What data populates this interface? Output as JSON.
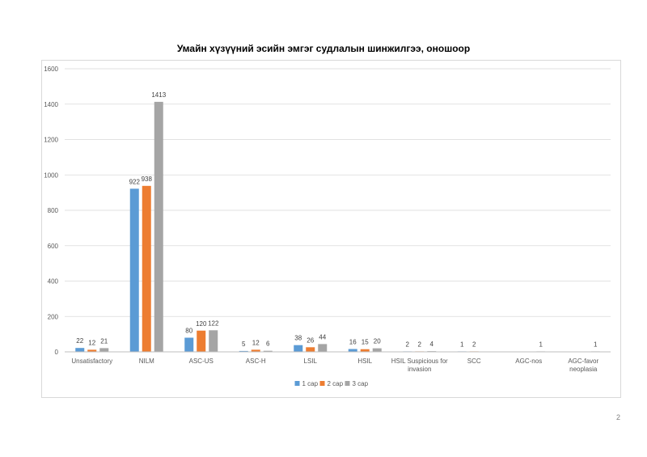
{
  "page": {
    "number": "2"
  },
  "chart_data": {
    "type": "bar",
    "title": "Умайн хүзүүний эсийн эмгэг судлалын шинжилгээ, оношоор",
    "xlabel": "",
    "ylabel": "",
    "ylim": [
      0,
      1600
    ],
    "yticks": [
      "0",
      "200",
      "400",
      "600",
      "800",
      "1000",
      "1200",
      "1400",
      "1600"
    ],
    "grid": true,
    "legend_position": "bottom",
    "categories": [
      [
        "Unsatisfactory"
      ],
      [
        "NILM"
      ],
      [
        "ASC-US"
      ],
      [
        "ASC-H"
      ],
      [
        "LSIL"
      ],
      [
        "HSIL"
      ],
      [
        "HSIL Suspicious for",
        "invasion"
      ],
      [
        "SCC"
      ],
      [
        "AGC-nos"
      ],
      [
        "AGC-favor",
        "neoplasia"
      ]
    ],
    "series": [
      {
        "name": "1 сар",
        "color": "#5b9bd5",
        "values": [
          22,
          922,
          80,
          5,
          38,
          16,
          2,
          1,
          null,
          null
        ]
      },
      {
        "name": "2 сар",
        "color": "#ed7d31",
        "values": [
          12,
          938,
          120,
          12,
          26,
          15,
          2,
          2,
          null,
          null
        ]
      },
      {
        "name": "3 сар",
        "color": "#a5a5a5",
        "values": [
          21,
          1413,
          122,
          6,
          44,
          20,
          4,
          null,
          1,
          1
        ]
      }
    ]
  }
}
